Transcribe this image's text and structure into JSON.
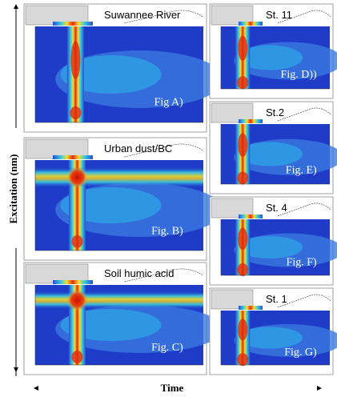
{
  "y_axis_label": "Excitation (nm)",
  "x_axis_label": "Time",
  "panels": [
    {
      "title": "Suwannee River",
      "label": "Fig A)"
    },
    {
      "title": "Urban dust/BC",
      "label": "Fig. B)"
    },
    {
      "title": "Soil humic acid",
      "label": "Fig. C)"
    },
    {
      "title": "St. 11",
      "label": "Fig. D))"
    },
    {
      "title": "St.2",
      "label": "Fig. E)"
    },
    {
      "title": "St. 4",
      "label": "Fig. F)"
    },
    {
      "title": "St. 1",
      "label": "Fig. G)"
    }
  ]
}
